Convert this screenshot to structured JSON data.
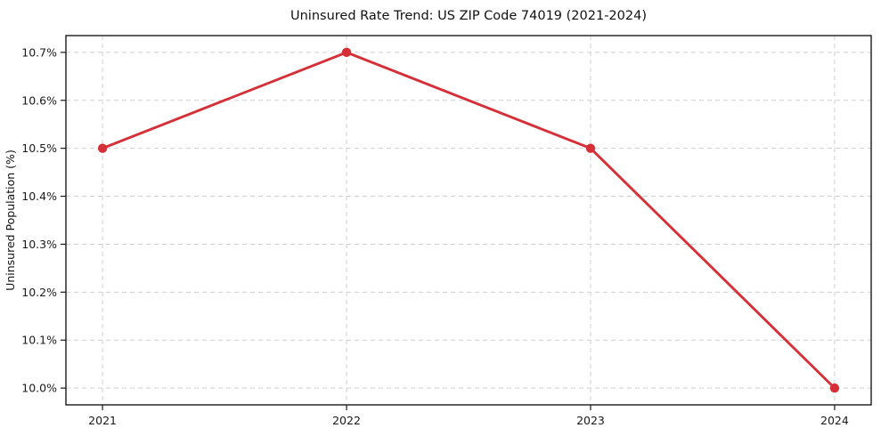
{
  "chart_data": {
    "type": "line",
    "title": "Uninsured Rate Trend: US ZIP Code 74019 (2021-2024)",
    "xlabel": "",
    "ylabel": "Uninsured Population (%)",
    "x": [
      2021,
      2022,
      2023,
      2024
    ],
    "values": [
      10.5,
      10.7,
      10.5,
      10.0
    ],
    "x_tick_labels": [
      "2021",
      "2022",
      "2023",
      "2024"
    ],
    "y_ticks": [
      10.0,
      10.1,
      10.2,
      10.3,
      10.4,
      10.5,
      10.6,
      10.7
    ],
    "y_tick_labels": [
      "10.0%",
      "10.1%",
      "10.2%",
      "10.3%",
      "10.4%",
      "10.5%",
      "10.6%",
      "10.7%"
    ],
    "xlim": [
      2020.85,
      2024.15
    ],
    "ylim": [
      9.965,
      10.735
    ],
    "grid": true,
    "grid_style": "dashed",
    "legend": "none",
    "marker": "circle",
    "colors": {
      "line": "#d53038",
      "marker": "#d53038",
      "grid": "#cfcfcf",
      "axis": "#1a1a1a",
      "text": "#1a1a1a",
      "background": "#ffffff"
    }
  }
}
